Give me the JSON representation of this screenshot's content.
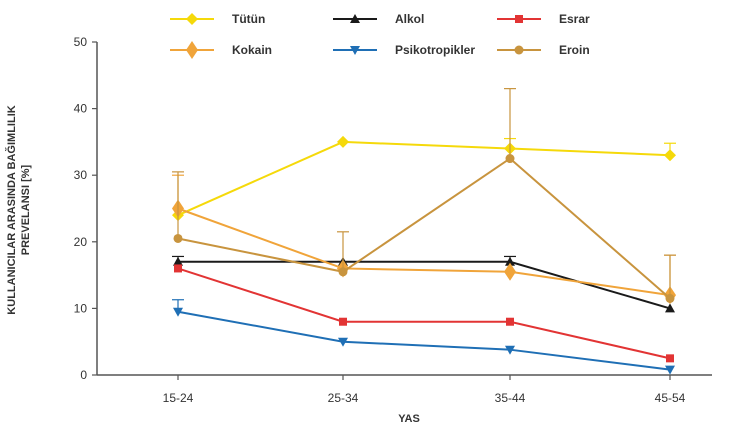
{
  "chart_data": {
    "type": "line",
    "xlabel": "YAS",
    "ylabel_lines": [
      "KULLANICILAR ARASINDA BAĞIMLILIK",
      "PREVELANSI [%]"
    ],
    "categories": [
      "15-24",
      "25-34",
      "35-44",
      "45-54"
    ],
    "ylim": [
      0,
      50
    ],
    "yticks": [
      0,
      10,
      20,
      30,
      40,
      50
    ],
    "grid": false,
    "legend_position": "top",
    "series": [
      {
        "name": "Tütün",
        "color": "#f5d90a",
        "marker": "diamond",
        "values": [
          24,
          35,
          34,
          33
        ],
        "err_up": [
          0,
          0,
          1.5,
          1.8
        ]
      },
      {
        "name": "Alkol",
        "color": "#1a1a1a",
        "marker": "triangle-up",
        "values": [
          17,
          17,
          17,
          10
        ],
        "err_up": [
          0.8,
          0,
          0.8,
          0
        ]
      },
      {
        "name": "Esrar",
        "color": "#e23434",
        "marker": "square",
        "values": [
          16,
          8,
          8,
          2.5
        ],
        "err_up": [
          0,
          0,
          0,
          0
        ]
      },
      {
        "name": "Kokain",
        "color": "#f0a43a",
        "marker": "diamond-large",
        "values": [
          25,
          16,
          15.5,
          12
        ],
        "err_up": [
          5,
          0,
          0,
          6
        ]
      },
      {
        "name": "Psikotropikler",
        "color": "#1f6fb5",
        "marker": "triangle-down",
        "values": [
          9.5,
          5,
          3.8,
          0.8
        ],
        "err_up": [
          1.8,
          0,
          0,
          0
        ]
      },
      {
        "name": "Eroin",
        "color": "#c8943e",
        "marker": "circle",
        "values": [
          20.5,
          15.5,
          32.5,
          11.5
        ],
        "err_up": [
          10,
          6,
          10.5,
          6.5
        ]
      }
    ]
  }
}
